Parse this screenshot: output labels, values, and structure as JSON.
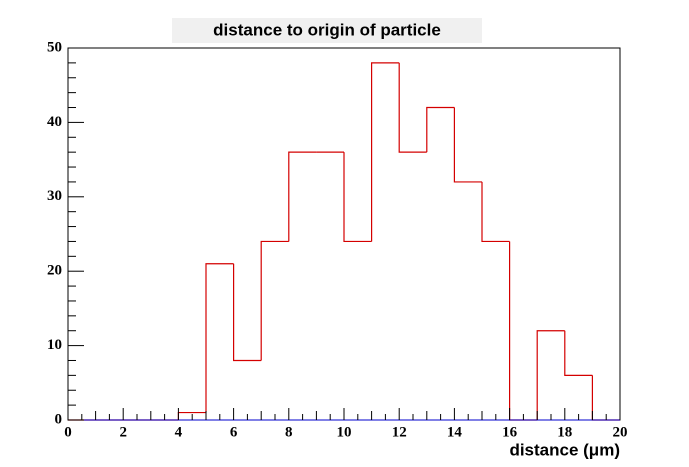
{
  "chart_data": {
    "type": "histogram",
    "title": "distance to origin of particle",
    "x_label": "distance (μm)",
    "bins": [
      0,
      1,
      2,
      3,
      4,
      5,
      6,
      7,
      8,
      9,
      10,
      11,
      12,
      13,
      14,
      15,
      16,
      17,
      18,
      19,
      20
    ],
    "values": [
      0,
      0,
      0,
      0,
      1,
      21,
      8,
      24,
      36,
      36,
      24,
      48,
      36,
      42,
      32,
      24,
      0,
      12,
      6,
      0
    ],
    "color": "#d40000",
    "xlim": [
      0,
      20
    ],
    "xticks": [
      0,
      2,
      4,
      6,
      8,
      10,
      12,
      14,
      16,
      18,
      20
    ],
    "ylim": [
      0,
      50
    ],
    "yticks": [
      0,
      10,
      20,
      30,
      40,
      50
    ]
  }
}
